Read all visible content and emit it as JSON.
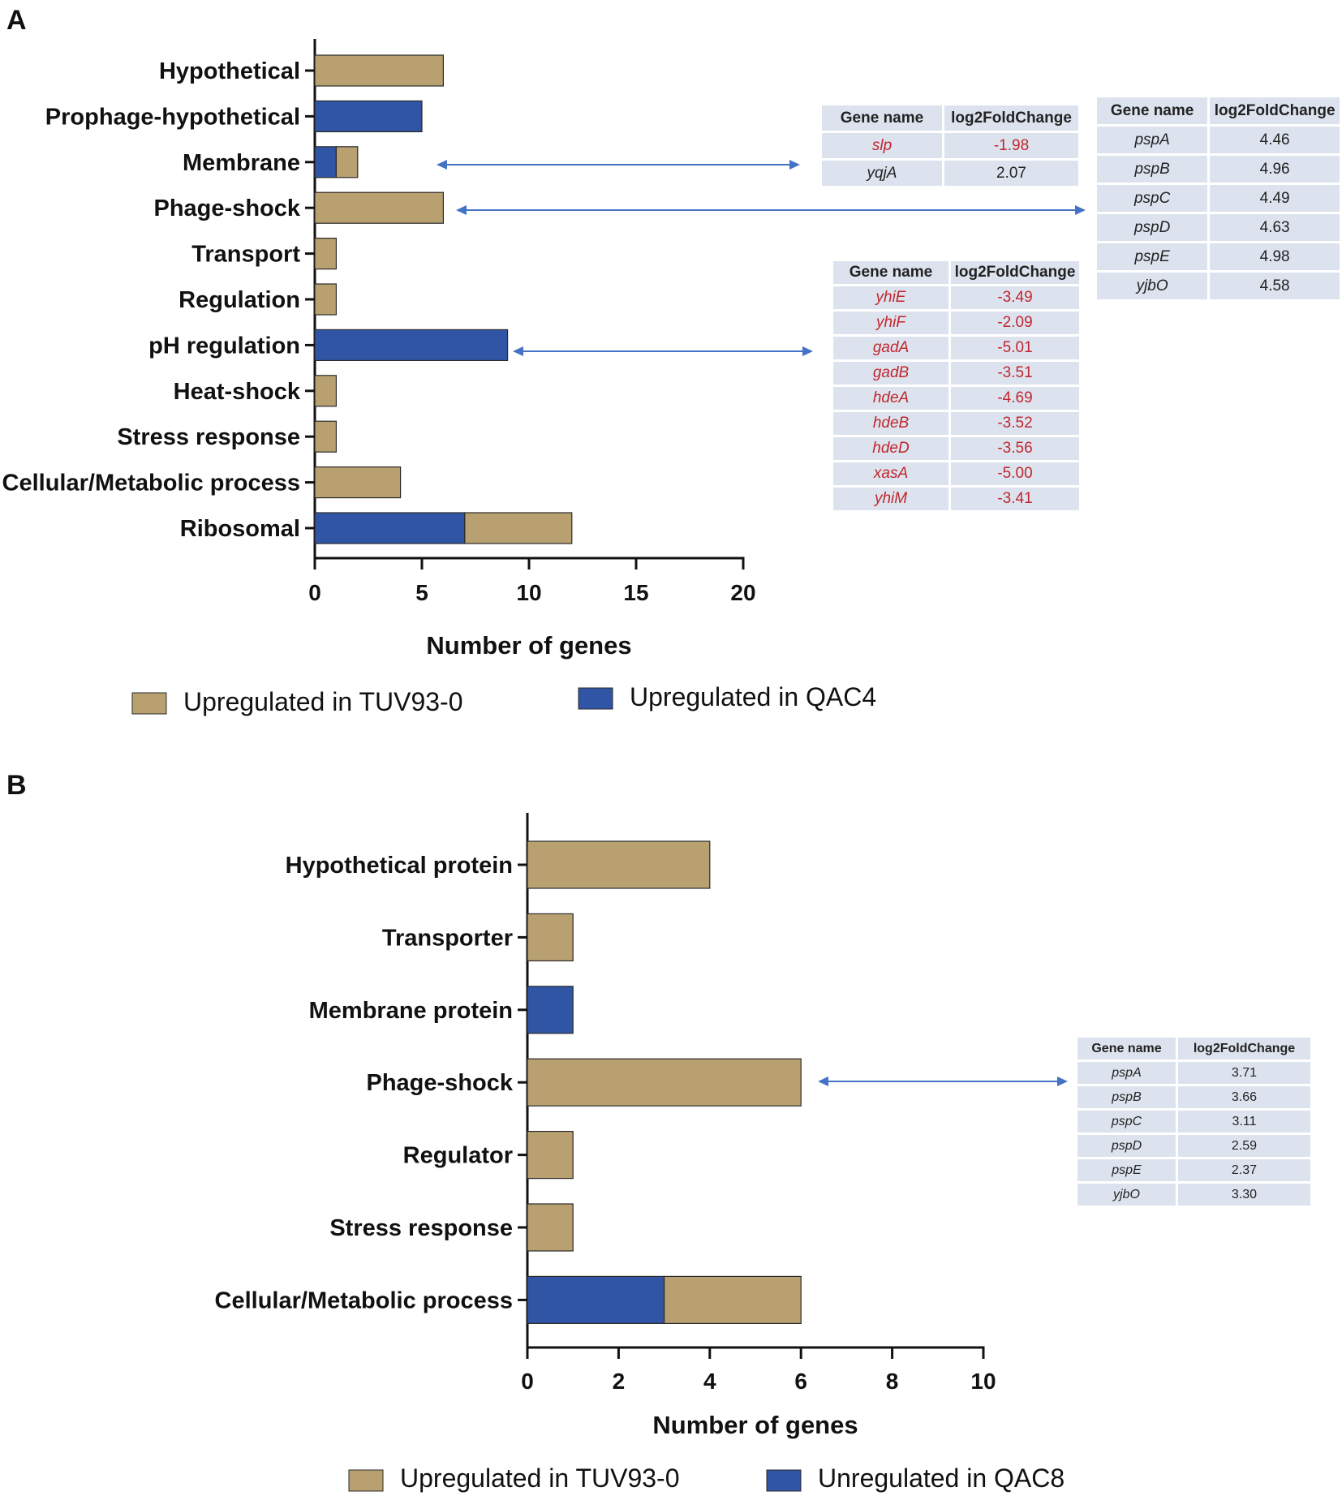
{
  "colors": {
    "tuv": "#b8a070",
    "qac": "#2f55a4",
    "table_bg": "#dde3ee",
    "neg_text": "#c0262d",
    "arrow": "#4472c4"
  },
  "chart_data": [
    {
      "type": "bar",
      "orientation": "horizontal",
      "stacked": true,
      "panel": "A",
      "categories": [
        "Hypothetical",
        "Prophage-hypothetical",
        "Membrane",
        "Phage-shock",
        "Transport",
        "Regulation",
        "pH regulation",
        "Heat-shock",
        "Stress response",
        "Cellular/Metabolic process",
        "Ribosomal"
      ],
      "series": [
        {
          "name": "Upregulated in QAC4",
          "values": [
            0,
            5,
            1,
            0,
            0,
            0,
            9,
            0,
            0,
            0,
            7
          ]
        },
        {
          "name": "Upregulated in TUV93-0",
          "values": [
            6,
            0,
            1,
            6,
            1,
            1,
            0,
            1,
            1,
            4,
            5
          ]
        }
      ],
      "xlabel": "Number of genes",
      "xlim": [
        0,
        20
      ],
      "xticks": [
        "0",
        "5",
        "10",
        "15",
        "20"
      ],
      "legend": [
        "Upregulated in TUV93-0",
        "Upregulated in QAC4"
      ],
      "legend_position": "bottom"
    },
    {
      "type": "bar",
      "orientation": "horizontal",
      "stacked": true,
      "panel": "B",
      "categories": [
        "Hypothetical protein",
        "Transporter",
        "Membrane protein",
        "Phage-shock",
        "Regulator",
        "Stress response",
        "Cellular/Metabolic process"
      ],
      "series": [
        {
          "name": "Unregulated in QAC8",
          "values": [
            0,
            0,
            1,
            0,
            0,
            0,
            3
          ]
        },
        {
          "name": "Upregulated in TUV93-0",
          "values": [
            4,
            1,
            0,
            6,
            1,
            1,
            3
          ]
        }
      ],
      "xlabel": "Number of genes",
      "xlim": [
        0,
        10
      ],
      "xticks": [
        "0",
        "2",
        "4",
        "6",
        "8",
        "10"
      ],
      "legend": [
        "Upregulated in TUV93-0",
        "Unregulated in QAC8"
      ],
      "legend_position": "bottom"
    }
  ],
  "tables": {
    "membrane_A": {
      "header": [
        "Gene name",
        "log2FoldChange"
      ],
      "rows": [
        {
          "gene": "slp",
          "fc": "-1.98",
          "neg": true
        },
        {
          "gene": "yqjA",
          "fc": "2.07",
          "neg": false
        }
      ]
    },
    "phage_A": {
      "header": [
        "Gene name",
        "log2FoldChange"
      ],
      "rows": [
        {
          "gene": "pspA",
          "fc": "4.46",
          "neg": false
        },
        {
          "gene": "pspB",
          "fc": "4.96",
          "neg": false
        },
        {
          "gene": "pspC",
          "fc": "4.49",
          "neg": false
        },
        {
          "gene": "pspD",
          "fc": "4.63",
          "neg": false
        },
        {
          "gene": "pspE",
          "fc": "4.98",
          "neg": false
        },
        {
          "gene": "yjbO",
          "fc": "4.58",
          "neg": false
        }
      ]
    },
    "ph_A": {
      "header": [
        "Gene name",
        "log2FoldChange"
      ],
      "rows": [
        {
          "gene": "yhiE",
          "fc": "-3.49",
          "neg": true
        },
        {
          "gene": "yhiF",
          "fc": "-2.09",
          "neg": true
        },
        {
          "gene": "gadA",
          "fc": "-5.01",
          "neg": true
        },
        {
          "gene": "gadB",
          "fc": "-3.51",
          "neg": true
        },
        {
          "gene": "hdeA",
          "fc": "-4.69",
          "neg": true
        },
        {
          "gene": "hdeB",
          "fc": "-3.52",
          "neg": true
        },
        {
          "gene": "hdeD",
          "fc": "-3.56",
          "neg": true
        },
        {
          "gene": "xasA",
          "fc": "-5.00",
          "neg": true
        },
        {
          "gene": "yhiM",
          "fc": "-3.41",
          "neg": true
        }
      ]
    },
    "phage_B": {
      "header": [
        "Gene name",
        "log2FoldChange"
      ],
      "rows": [
        {
          "gene": "pspA",
          "fc": "3.71",
          "neg": false
        },
        {
          "gene": "pspB",
          "fc": "3.66",
          "neg": false
        },
        {
          "gene": "pspC",
          "fc": "3.11",
          "neg": false
        },
        {
          "gene": "pspD",
          "fc": "2.59",
          "neg": false
        },
        {
          "gene": "pspE",
          "fc": "2.37",
          "neg": false
        },
        {
          "gene": "yjbO",
          "fc": "3.30",
          "neg": false
        }
      ]
    }
  }
}
